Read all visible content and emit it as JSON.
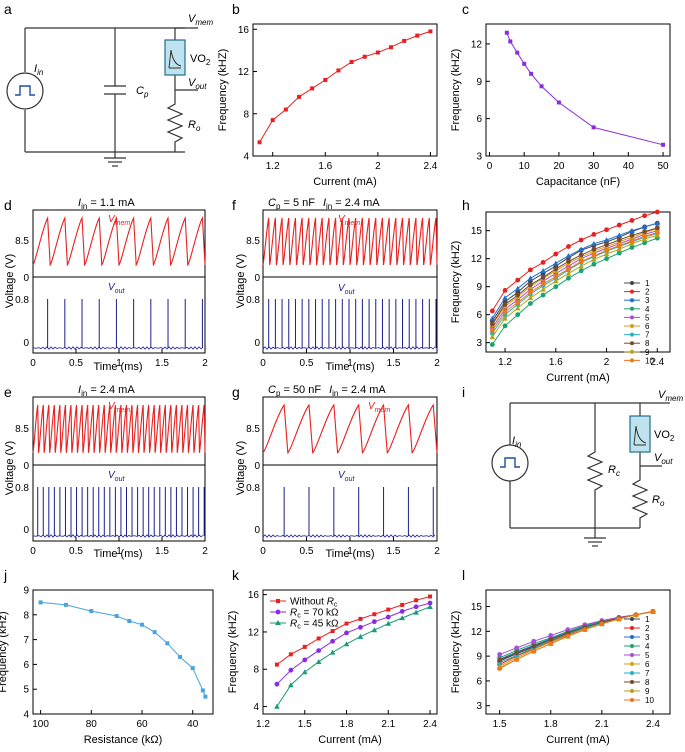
{
  "panel_labels": [
    "a",
    "b",
    "c",
    "d",
    "e",
    "f",
    "g",
    "h",
    "i",
    "j",
    "k",
    "l"
  ],
  "circuit_a": {
    "i_in": "I",
    "i_in_sub": "in",
    "v_mem": "V",
    "v_mem_sub": "mem",
    "vo2": "VO",
    "vo2_sub": "2",
    "v_out": "V",
    "v_out_sub": "out",
    "cp": "C",
    "cp_sub": "p",
    "ro": "R",
    "ro_sub": "o"
  },
  "circuit_i": {
    "i_in": "I",
    "i_in_sub": "in",
    "v_mem": "V",
    "v_mem_sub": "mem",
    "vo2": "VO",
    "vo2_sub": "2",
    "v_out": "V",
    "v_out_sub": "out",
    "rc": "R",
    "rc_sub": "c",
    "ro": "R",
    "ro_sub": "o"
  },
  "colors": {
    "red": "#e8201f",
    "blue": "#1a1f8c",
    "purple": "#8a2be2",
    "sky": "#4aa3df",
    "orange": "#f07818"
  },
  "wave_panels": {
    "d": {
      "title_main": "I",
      "title_sub": "in",
      "title_rest": " = 1.1 mA",
      "ylabel": "Voltage (V)",
      "xlabel": "Time (ms)",
      "vmem": "V",
      "vmem_sub": "mem",
      "vout": "V",
      "vout_sub": "out",
      "yticks_top": [
        "8.5",
        "0"
      ],
      "yticks_bot": [
        "0.8",
        "0"
      ],
      "xticks": [
        "0",
        "0.5",
        "1",
        "1.5",
        "2"
      ],
      "spikes": 10
    },
    "e": {
      "title_main": "I",
      "title_sub": "in",
      "title_rest": " = 2.4 mA",
      "ylabel": "Voltage (V)",
      "xlabel": "Time (ms)",
      "vmem": "V",
      "vmem_sub": "mem",
      "vout": "V",
      "vout_sub": "out",
      "yticks_top": [
        "8.5",
        "0"
      ],
      "yticks_bot": [
        "0.8",
        "0"
      ],
      "xticks": [
        "0",
        "0.5",
        "1",
        "1.5",
        "2"
      ],
      "spikes": 31
    },
    "f": {
      "title_c": "C",
      "title_c_sub": "p",
      "title_c_rest": " = 5 nF",
      "title_i": "I",
      "title_i_sub": "in",
      "title_i_rest": " = 2.4 mA",
      "ylabel": "Voltage (V)",
      "xlabel": "Time (ms)",
      "vmem": "V",
      "vmem_sub": "mem",
      "vout": "V",
      "vout_sub": "out",
      "yticks_top": [
        "8.5",
        "0"
      ],
      "yticks_bot": [
        "0.8",
        "0"
      ],
      "xticks": [
        "0",
        "0.5",
        "1",
        "1.5",
        "2"
      ],
      "spikes": 26
    },
    "g": {
      "title_c": "C",
      "title_c_sub": "p",
      "title_c_rest": " = 50 nF",
      "title_i": "I",
      "title_i_sub": "in",
      "title_i_rest": " = 2.4 mA",
      "ylabel": "Voltage (V)",
      "xlabel": "Time (ms)",
      "vmem": "V",
      "vmem_sub": "mem",
      "vout": "V",
      "vout_sub": "out",
      "yticks_top": [
        "8.5",
        "0"
      ],
      "yticks_bot": [
        "0.8",
        "0"
      ],
      "xticks": [
        "0",
        "0.5",
        "1",
        "1.5",
        "2"
      ],
      "spikes": 7
    }
  },
  "legend_10": [
    "1",
    "2",
    "3",
    "4",
    "5",
    "6",
    "7",
    "8",
    "9",
    "10"
  ],
  "legend_k": {
    "l1": "Without ",
    "l1_r": "R",
    "l1_sub": "c",
    "l2_r": "R",
    "l2_sub": "c",
    "l2_rest": "= 70 kΩ",
    "l3_r": "R",
    "l3_sub": "c",
    "l3_rest": "= 45 kΩ"
  },
  "chart_data": [
    {
      "panel": "b",
      "type": "line",
      "xlabel": "Current (mA)",
      "ylabel": "Frequency (kHZ)",
      "x": [
        1.1,
        1.2,
        1.3,
        1.4,
        1.5,
        1.6,
        1.7,
        1.8,
        1.9,
        2.0,
        2.1,
        2.2,
        2.3,
        2.4
      ],
      "y": [
        5.3,
        7.4,
        8.4,
        9.6,
        10.4,
        11.2,
        12.1,
        12.9,
        13.4,
        13.8,
        14.3,
        14.9,
        15.4,
        15.8
      ],
      "xlim": [
        1.05,
        2.45
      ],
      "ylim": [
        4,
        16.5
      ],
      "xticks": [
        "1.2",
        "1.6",
        "2",
        "2.4"
      ],
      "yticks": [
        "4",
        "8",
        "12",
        "16"
      ]
    },
    {
      "panel": "c",
      "type": "line",
      "xlabel": "Capacitance (nF)",
      "ylabel": "Frequency (kHZ)",
      "x": [
        5,
        6,
        8,
        10,
        12,
        15,
        20,
        30,
        50
      ],
      "y": [
        12.9,
        12.2,
        11.3,
        10.4,
        9.6,
        8.6,
        7.3,
        5.3,
        3.9
      ],
      "xlim": [
        -1,
        52
      ],
      "ylim": [
        3,
        13.6
      ],
      "xticks": [
        "0",
        "10",
        "20",
        "30",
        "40",
        "50"
      ],
      "yticks": [
        "3",
        "6",
        "9",
        "12"
      ]
    },
    {
      "panel": "h",
      "type": "line",
      "xlabel": "Current (mA)",
      "ylabel": "Frequency (kHZ)",
      "x": [
        1.1,
        1.2,
        1.3,
        1.4,
        1.5,
        1.6,
        1.7,
        1.8,
        1.9,
        2.0,
        2.1,
        2.2,
        2.3,
        2.4
      ],
      "xlim": [
        1.05,
        2.5
      ],
      "ylim": [
        2,
        17
      ],
      "xticks": [
        "1.2",
        "1.6",
        "2",
        "2.4"
      ],
      "yticks": [
        "3",
        "6",
        "9",
        "12",
        "15"
      ],
      "series": [
        {
          "name": "1",
          "color": "#444444",
          "values": [
            5.3,
            7.4,
            8.4,
            9.6,
            10.4,
            11.2,
            12.1,
            12.9,
            13.4,
            13.8,
            14.3,
            14.9,
            15.4,
            15.8
          ]
        },
        {
          "name": "2",
          "color": "#e8201f",
          "values": [
            6.4,
            8.6,
            9.7,
            10.8,
            11.6,
            12.5,
            13.3,
            14.0,
            14.6,
            15.1,
            15.6,
            16.1,
            16.6,
            17.0
          ]
        },
        {
          "name": "3",
          "color": "#1f6fd1",
          "values": [
            5.6,
            7.8,
            8.8,
            9.9,
            10.7,
            11.5,
            12.3,
            13.0,
            13.6,
            14.0,
            14.5,
            15.0,
            15.4,
            15.8
          ]
        },
        {
          "name": "4",
          "color": "#1aa36a",
          "values": [
            2.8,
            4.8,
            6.0,
            7.2,
            8.1,
            9.0,
            9.9,
            10.7,
            11.4,
            12.0,
            12.6,
            13.2,
            13.7,
            14.2
          ]
        },
        {
          "name": "5",
          "color": "#a64fd6",
          "values": [
            4.6,
            6.6,
            7.6,
            8.7,
            9.6,
            10.4,
            11.2,
            12.0,
            12.6,
            13.1,
            13.6,
            14.1,
            14.6,
            15.0
          ]
        },
        {
          "name": "6",
          "color": "#d6a019",
          "values": [
            4.9,
            6.9,
            7.9,
            9.0,
            9.9,
            10.7,
            11.5,
            12.2,
            12.8,
            13.3,
            13.8,
            14.3,
            14.8,
            15.2
          ]
        },
        {
          "name": "7",
          "color": "#23b3c4",
          "values": [
            4.0,
            6.0,
            7.1,
            8.2,
            9.1,
            9.9,
            10.8,
            11.6,
            12.2,
            12.8,
            13.3,
            13.8,
            14.3,
            14.7
          ]
        },
        {
          "name": "8",
          "color": "#7a4a2b",
          "values": [
            5.0,
            7.1,
            8.1,
            9.2,
            10.0,
            10.9,
            11.7,
            12.4,
            13.0,
            13.5,
            14.0,
            14.5,
            14.9,
            15.3
          ]
        },
        {
          "name": "9",
          "color": "#b5a21a",
          "values": [
            3.6,
            5.6,
            6.7,
            7.8,
            8.7,
            9.6,
            10.4,
            11.2,
            11.9,
            12.5,
            13.0,
            13.6,
            14.1,
            14.5
          ]
        },
        {
          "name": "10",
          "color": "#f07818",
          "values": [
            4.3,
            6.3,
            7.3,
            8.4,
            9.3,
            10.1,
            10.9,
            11.7,
            12.3,
            12.9,
            13.4,
            13.9,
            14.4,
            14.8
          ]
        }
      ]
    },
    {
      "panel": "j",
      "type": "line",
      "xlabel": "Resistance (kΩ)",
      "ylabel": "Frequency (kHz)",
      "x": [
        100,
        90,
        80,
        70,
        65,
        60,
        55,
        50,
        45,
        40,
        36,
        35
      ],
      "y": [
        8.5,
        8.4,
        8.15,
        7.95,
        7.75,
        7.6,
        7.3,
        6.85,
        6.3,
        5.85,
        4.95,
        4.7
      ],
      "xlim": [
        103,
        32
      ],
      "ylim": [
        4,
        9
      ],
      "xticks": [
        "100",
        "80",
        "60",
        "40"
      ],
      "yticks": [
        "4",
        "5",
        "6",
        "7",
        "8",
        "9"
      ]
    },
    {
      "panel": "k",
      "type": "line",
      "xlabel": "Current (mA)",
      "ylabel": "Frequency (kHZ)",
      "x": [
        1.3,
        1.4,
        1.5,
        1.6,
        1.7,
        1.8,
        1.9,
        2.0,
        2.1,
        2.2,
        2.3,
        2.4
      ],
      "xlim": [
        1.2,
        2.45
      ],
      "ylim": [
        3.2,
        16.5
      ],
      "xticks": [
        "1.2",
        "1.5",
        "1.8",
        "2.1",
        "2.4"
      ],
      "yticks": [
        "4",
        "8",
        "12",
        "16"
      ],
      "series": [
        {
          "name": "Without Rc",
          "color": "#e8201f",
          "values": [
            8.5,
            9.6,
            10.4,
            11.3,
            12.1,
            12.9,
            13.4,
            13.9,
            14.4,
            14.9,
            15.4,
            15.8
          ]
        },
        {
          "name": "Rc = 70 kΩ",
          "color": "#8a2be2",
          "values": [
            6.4,
            7.9,
            9.0,
            10.0,
            11.0,
            11.9,
            12.5,
            13.1,
            13.6,
            14.2,
            14.7,
            15.1
          ]
        },
        {
          "name": "Rc = 45 kΩ",
          "color": "#1a9a7a",
          "values": [
            4.0,
            6.3,
            7.7,
            8.8,
            9.8,
            10.7,
            11.5,
            12.2,
            12.9,
            13.5,
            14.1,
            14.7
          ]
        }
      ]
    },
    {
      "panel": "l",
      "type": "line",
      "xlabel": "Current (mA)",
      "ylabel": "Frequency (kHZ)",
      "x": [
        1.5,
        1.6,
        1.7,
        1.8,
        1.9,
        2.0,
        2.1,
        2.2,
        2.3,
        2.4
      ],
      "xlim": [
        1.42,
        2.5
      ],
      "ylim": [
        2,
        17
      ],
      "xticks": [
        "1.5",
        "1.8",
        "2.1",
        "2.4"
      ],
      "yticks": [
        "3",
        "6",
        "9",
        "12",
        "15"
      ],
      "series": [
        {
          "name": "1",
          "color": "#444444",
          "values": [
            8.4,
            9.3,
            10.1,
            10.9,
            11.7,
            12.5,
            13.1,
            13.6,
            14.0,
            14.4
          ]
        },
        {
          "name": "2",
          "color": "#e8201f",
          "values": [
            8.0,
            9.0,
            9.9,
            10.8,
            11.6,
            12.4,
            13.0,
            13.5,
            14.0,
            14.4
          ]
        },
        {
          "name": "3",
          "color": "#1f6fd1",
          "values": [
            8.6,
            9.5,
            10.3,
            11.1,
            11.9,
            12.6,
            13.1,
            13.6,
            14.0,
            14.4
          ]
        },
        {
          "name": "4",
          "color": "#1aa36a",
          "values": [
            8.8,
            9.7,
            10.5,
            11.2,
            12.0,
            12.7,
            13.2,
            13.6,
            14.0,
            14.4
          ]
        },
        {
          "name": "5",
          "color": "#a64fd6",
          "values": [
            9.2,
            10.0,
            10.8,
            11.5,
            12.2,
            12.8,
            13.3,
            13.7,
            14.0,
            14.4
          ]
        },
        {
          "name": "6",
          "color": "#d6a019",
          "values": [
            7.8,
            8.8,
            9.8,
            10.7,
            11.5,
            12.3,
            12.9,
            13.5,
            14.0,
            14.4
          ]
        },
        {
          "name": "7",
          "color": "#23b3c4",
          "values": [
            8.2,
            9.1,
            10.0,
            10.9,
            11.7,
            12.4,
            13.0,
            13.5,
            14.0,
            14.4
          ]
        },
        {
          "name": "8",
          "color": "#7a4a2b",
          "values": [
            8.5,
            9.4,
            10.2,
            11.0,
            11.8,
            12.5,
            13.1,
            13.6,
            14.0,
            14.4
          ]
        },
        {
          "name": "9",
          "color": "#b5a21a",
          "values": [
            7.6,
            8.6,
            9.6,
            10.5,
            11.4,
            12.2,
            12.9,
            13.5,
            14.0,
            14.4
          ]
        },
        {
          "name": "10",
          "color": "#f07818",
          "values": [
            7.5,
            8.6,
            9.6,
            10.5,
            11.4,
            12.2,
            12.9,
            13.5,
            14.0,
            14.4
          ]
        }
      ]
    }
  ]
}
